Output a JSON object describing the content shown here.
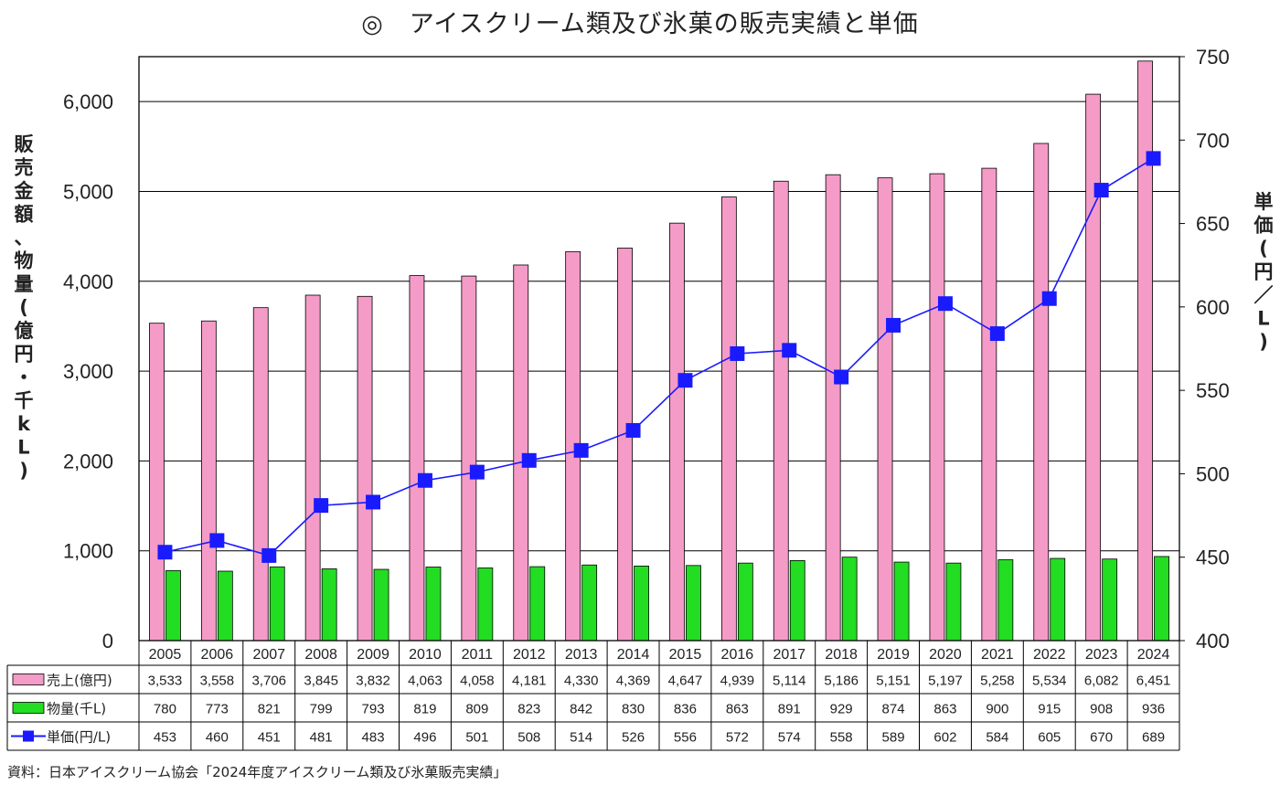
{
  "title": "◎　アイスクリーム類及び氷菓の販売実績と単価",
  "source": "資料：日本アイスクリーム協会「2024年度アイスクリーム類及び氷菓販売実績」",
  "left_axis_label_chars": [
    "販",
    "売",
    "金",
    "額",
    "、",
    "物",
    "量",
    "(",
    "億",
    "円",
    "・",
    "千",
    "k",
    "L",
    ")"
  ],
  "right_axis_label_chars": [
    "単",
    "価",
    "(",
    "円",
    "／",
    "L",
    ")"
  ],
  "table_row_labels": [
    "売上(億円)",
    "物量(千L)",
    "単価(円/L)"
  ],
  "colors": {
    "sales": "#f59bc7",
    "volume": "#22dd22",
    "price": "#1a1aff",
    "grid": "#000000"
  },
  "chart_data": {
    "type": "bar+line",
    "title": "◎　アイスクリーム類及び氷菓の販売実績と単価",
    "categories": [
      "2005",
      "2006",
      "2007",
      "2008",
      "2009",
      "2010",
      "2011",
      "2012",
      "2013",
      "2014",
      "2015",
      "2016",
      "2017",
      "2018",
      "2019",
      "2020",
      "2021",
      "2022",
      "2023",
      "2024"
    ],
    "series": [
      {
        "name": "売上(億円)",
        "type": "bar",
        "axis": "left",
        "values": [
          3533,
          3558,
          3706,
          3845,
          3832,
          4063,
          4058,
          4181,
          4330,
          4369,
          4647,
          4939,
          5114,
          5186,
          5151,
          5197,
          5258,
          5534,
          6082,
          6451
        ],
        "labels": [
          "3,533",
          "3,558",
          "3,706",
          "3,845",
          "3,832",
          "4,063",
          "4,058",
          "4,181",
          "4,330",
          "4,369",
          "4,647",
          "4,939",
          "5,114",
          "5,186",
          "5,151",
          "5,197",
          "5,258",
          "5,534",
          "6,082",
          "6,451"
        ]
      },
      {
        "name": "物量(千L)",
        "type": "bar",
        "axis": "left",
        "values": [
          780,
          773,
          821,
          799,
          793,
          819,
          809,
          823,
          842,
          830,
          836,
          863,
          891,
          929,
          874,
          863,
          900,
          915,
          908,
          936
        ],
        "labels": [
          "780",
          "773",
          "821",
          "799",
          "793",
          "819",
          "809",
          "823",
          "842",
          "830",
          "836",
          "863",
          "891",
          "929",
          "874",
          "863",
          "900",
          "915",
          "908",
          "936"
        ]
      },
      {
        "name": "単価(円/L)",
        "type": "line",
        "axis": "right",
        "values": [
          453,
          460,
          451,
          481,
          483,
          496,
          501,
          508,
          514,
          526,
          556,
          572,
          574,
          558,
          589,
          602,
          584,
          605,
          670,
          689
        ],
        "labels": [
          "453",
          "460",
          "451",
          "481",
          "483",
          "496",
          "501",
          "508",
          "514",
          "526",
          "556",
          "572",
          "574",
          "558",
          "589",
          "602",
          "584",
          "605",
          "670",
          "689"
        ]
      }
    ],
    "ylabel_left": "販売金額、物量(億円・千kL)",
    "ylabel_right": "単価(円／L)",
    "ylim_left": [
      0,
      6500
    ],
    "ylim_right": [
      400,
      750
    ],
    "yticks_left": [
      "0",
      "1,000",
      "2,000",
      "3,000",
      "4,000",
      "5,000",
      "6,000"
    ],
    "yticks_right": [
      "400",
      "450",
      "500",
      "550",
      "600",
      "650",
      "700",
      "750"
    ],
    "grid": true,
    "legend": "data table below the chart"
  }
}
